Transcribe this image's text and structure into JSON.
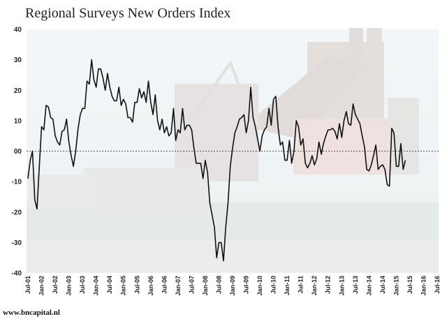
{
  "chart_data": {
    "type": "line",
    "title": "Regional Surveys New Orders Index",
    "xlabel": "",
    "ylabel": "",
    "ylim": [
      -40,
      40
    ],
    "yticks": [
      "40",
      "30",
      "20",
      "10",
      "00",
      "-10",
      "-20",
      "-30",
      "-40"
    ],
    "xticks": [
      "Jul-01",
      "Jan-02",
      "Jul-02",
      "Jan-03",
      "Jul-03",
      "Jan-04",
      "Jul-04",
      "Jan-05",
      "Jul-05",
      "Jan-06",
      "Jul-06",
      "Jan-07",
      "Jul-07",
      "Jan-08",
      "Jul-08",
      "Jan-09",
      "Jul-09",
      "Jan-10",
      "Jul-10",
      "Jan-11",
      "Jul-11",
      "Jan-12",
      "Jul-12",
      "Jan-13",
      "Jul-13",
      "Jan-14",
      "Jul-14",
      "Jan-15",
      "Jul-15",
      "Jan-16",
      "Jul-16"
    ],
    "zero_line": true,
    "grid": false,
    "series": [
      {
        "color": "#111111",
        "start": "Jul-01",
        "values": [
          -9,
          -3,
          0,
          -16,
          -19,
          -5,
          8,
          7,
          15,
          14.5,
          11,
          10.5,
          5,
          3,
          2,
          6.5,
          7,
          10.5,
          3,
          -1.5,
          -5,
          0,
          7,
          12,
          14,
          14,
          23,
          22,
          30,
          23.5,
          21,
          27,
          27,
          24,
          20,
          25.5,
          21,
          18,
          16.5,
          16.5,
          21,
          15,
          17,
          15.5,
          11,
          11,
          9.5,
          16,
          16,
          20.5,
          17.5,
          19.5,
          16,
          23,
          16,
          12,
          18.5,
          10,
          7,
          10.5,
          6,
          8,
          5,
          6,
          14,
          3.5,
          7,
          6,
          14,
          7,
          8.5,
          8.5,
          7,
          1,
          -4,
          -4,
          -4,
          -9,
          -3,
          -7,
          -17,
          -21,
          -25,
          -35,
          -30,
          -30,
          -36,
          -25,
          -17,
          -5,
          1,
          6,
          8,
          10.5,
          11,
          12,
          6,
          10,
          21,
          11,
          8,
          4,
          0,
          5,
          7,
          8,
          14,
          8.5,
          17,
          18,
          8,
          2,
          3,
          -3,
          -3,
          3.5,
          -4,
          0,
          10,
          8,
          2,
          4,
          -4,
          -5.5,
          -4,
          -1.5,
          -4.5,
          -2.5,
          3,
          -1,
          2.5,
          5,
          7,
          7,
          7.5,
          6.5,
          4,
          9,
          4.5,
          10,
          13,
          9,
          8.5,
          15.5,
          12,
          10.5,
          9,
          5,
          1.5,
          -6,
          -6.5,
          -4.5,
          -1.5,
          2,
          -6,
          -5,
          -4.5,
          -6,
          -11,
          -11.5,
          7.5,
          6,
          -5,
          -5,
          2.5,
          -6,
          -3
        ]
      }
    ]
  },
  "footer": {
    "source": "www.bncapital.nl"
  }
}
